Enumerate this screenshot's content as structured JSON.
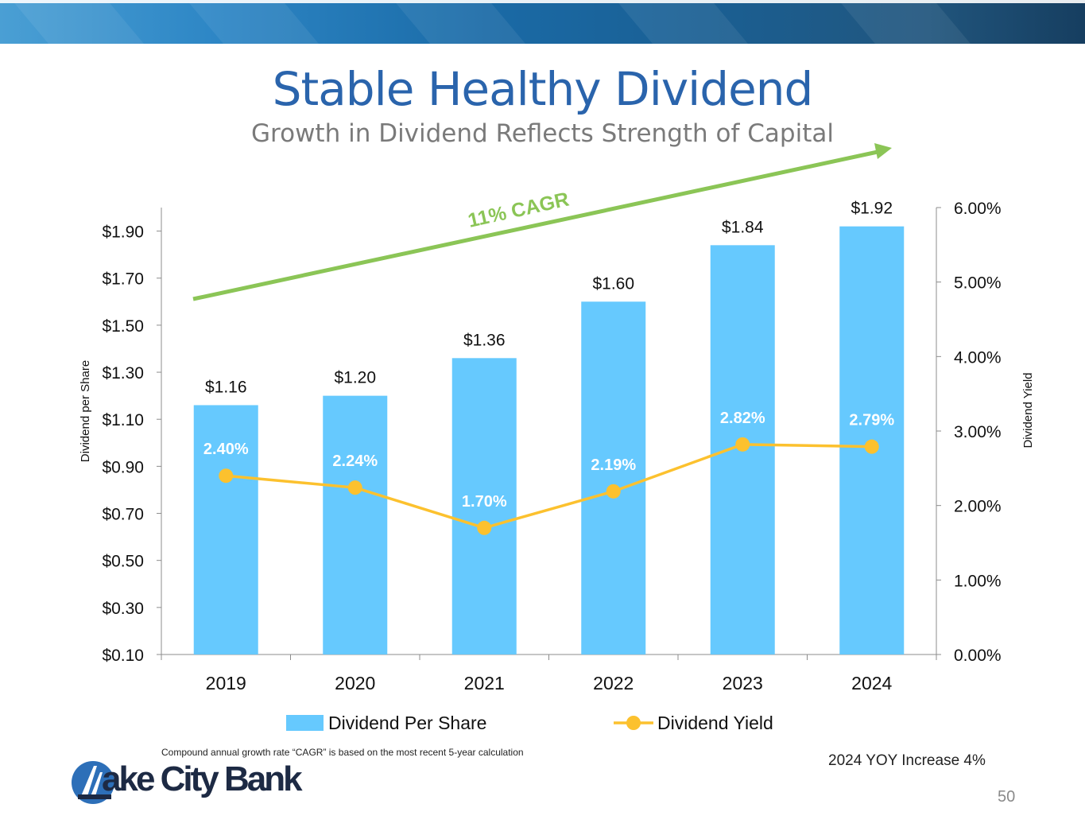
{
  "slide": {
    "title": "Stable Healthy Dividend",
    "subtitle": "Growth in Dividend Reflects Strength of Capital",
    "footnote": "Compound annual growth rate “CAGR” is based on the most recent 5-year calculation",
    "yoy_note": "2024 YOY Increase 4%",
    "page_number": "50",
    "logo_text": "ake City Bank",
    "logo_letter": "L"
  },
  "colors": {
    "bar": "#66c9fe",
    "line": "#fcc12e",
    "arrow": "#8bc556",
    "title": "#2a64ac",
    "yield_label": "#ffffff"
  },
  "chart_data": {
    "type": "bar+line",
    "categories": [
      "2019",
      "2020",
      "2021",
      "2022",
      "2023",
      "2024"
    ],
    "series": [
      {
        "name": "Dividend Per Share",
        "type": "bar",
        "axis": "left",
        "values": [
          1.16,
          1.2,
          1.36,
          1.6,
          1.84,
          1.92
        ],
        "labels": [
          "$1.16",
          "$1.20",
          "$1.36",
          "$1.60",
          "$1.84",
          "$1.92"
        ]
      },
      {
        "name": "Dividend Yield",
        "type": "line",
        "axis": "right",
        "values": [
          2.4,
          2.24,
          1.7,
          2.19,
          2.82,
          2.79
        ],
        "labels": [
          "2.40%",
          "2.24%",
          "1.70%",
          "2.19%",
          "2.82%",
          "2.79%"
        ]
      }
    ],
    "y_left": {
      "label": "Dividend per Share",
      "min": 0.1,
      "max": 2.0,
      "ticks": [
        0.1,
        0.3,
        0.5,
        0.7,
        0.9,
        1.1,
        1.3,
        1.5,
        1.7,
        1.9
      ],
      "tick_labels": [
        "$0.10",
        "$0.30",
        "$0.50",
        "$0.70",
        "$0.90",
        "$1.10",
        "$1.30",
        "$1.50",
        "$1.70",
        "$1.90"
      ]
    },
    "y_right": {
      "label": "Dividend Yield",
      "min": 0,
      "max": 6,
      "ticks": [
        0,
        1,
        2,
        3,
        4,
        5,
        6
      ],
      "tick_labels": [
        "0.00%",
        "1.00%",
        "2.00%",
        "3.00%",
        "4.00%",
        "5.00%",
        "6.00%"
      ]
    },
    "annotation": {
      "text": "11% CAGR"
    },
    "legend": {
      "placement": "bottom",
      "entries": [
        "Dividend Per Share",
        "Dividend Yield"
      ]
    }
  }
}
